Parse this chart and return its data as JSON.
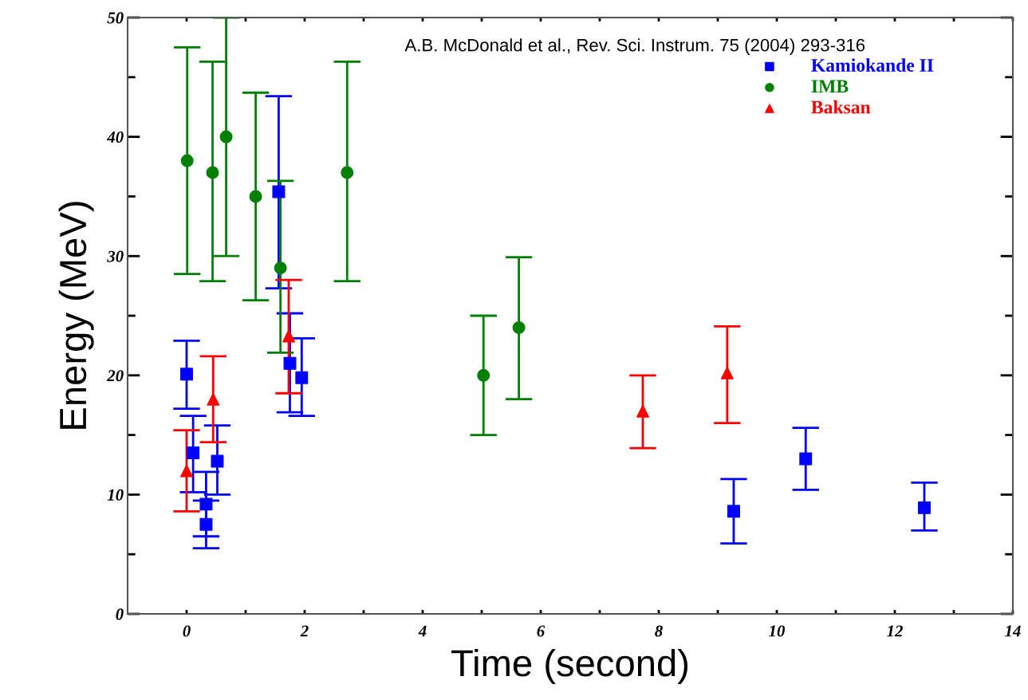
{
  "chart_data": {
    "type": "scatter",
    "xlabel": "Time (second)",
    "ylabel": "Energy (MeV)",
    "annotations": [
      "A.B. McDonald et al., Rev. Sci. Instrum. 75 (2004) 293-316"
    ],
    "xlim": [
      -1,
      14
    ],
    "ylim": [
      0,
      50
    ],
    "xticks": [
      0,
      {
        "value": 1,
        "label": null
      },
      2,
      {
        "value": 3,
        "label": null
      },
      4,
      {
        "value": 5,
        "label": null
      },
      6,
      {
        "value": 7,
        "label": null
      },
      8,
      {
        "value": 9,
        "label": null
      },
      10,
      {
        "value": 11,
        "label": null
      },
      12,
      {
        "value": 13,
        "label": null
      },
      14
    ],
    "yticks": [
      0,
      {
        "value": 5,
        "label": null
      },
      10,
      {
        "value": 15,
        "label": null
      },
      20,
      {
        "value": 25,
        "label": null
      },
      30,
      {
        "value": 35,
        "label": null
      },
      40,
      {
        "value": 45,
        "label": null
      },
      50
    ],
    "grid": false,
    "legend": "top right",
    "series": [
      {
        "name": "Kamiokande II",
        "color": "#0000ff",
        "marker": "square",
        "x": [
          0,
          0.11,
          0.33,
          0.33,
          0.52,
          1.56,
          1.75,
          1.95,
          9.27,
          10.49,
          12.5
        ],
        "values": [
          20.1,
          13.5,
          9.2,
          7.5,
          12.8,
          35.4,
          21.0,
          19.8,
          8.6,
          13.0,
          8.9
        ],
        "errors": [
          [
            17.2,
            22.9
          ],
          [
            10.2,
            16.6
          ],
          [
            6.5,
            11.9
          ],
          [
            5.5,
            9.5
          ],
          [
            10.0,
            15.8
          ],
          [
            27.3,
            43.4
          ],
          [
            16.9,
            25.2
          ],
          [
            16.6,
            23.1
          ],
          [
            5.9,
            11.3
          ],
          [
            10.4,
            15.6
          ],
          [
            7.0,
            11.0
          ]
        ]
      },
      {
        "name": "IMB",
        "color": "#008000",
        "marker": "circle",
        "x": [
          0.01,
          0.44,
          0.67,
          1.17,
          1.59,
          2.72,
          5.03,
          5.63
        ],
        "values": [
          38.0,
          37.0,
          40.0,
          35.0,
          29.0,
          37.0,
          20.0,
          24.0
        ],
        "errors": [
          [
            28.5,
            47.5
          ],
          [
            27.9,
            46.3
          ],
          [
            30.0,
            50
          ],
          [
            26.3,
            43.7
          ],
          [
            21.9,
            36.3
          ],
          [
            27.9,
            46.3
          ],
          [
            15.0,
            25.0
          ],
          [
            18.0,
            29.9
          ]
        ]
      },
      {
        "name": "Baksan",
        "color": "#ff0000",
        "marker": "triangle",
        "x": [
          0,
          0.45,
          1.73,
          7.73,
          9.16
        ],
        "values": [
          12.0,
          18.0,
          23.3,
          17.0,
          20.2
        ],
        "errors": [
          [
            8.6,
            15.4
          ],
          [
            14.4,
            21.6
          ],
          [
            18.5,
            28.0
          ],
          [
            13.9,
            20.0
          ],
          [
            16.0,
            24.1
          ]
        ]
      }
    ]
  }
}
